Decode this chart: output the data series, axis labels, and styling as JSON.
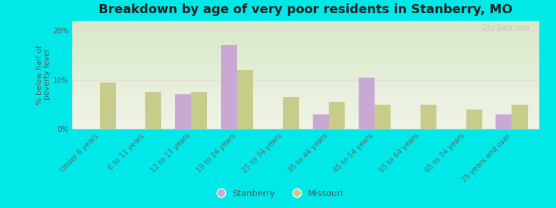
{
  "title": "Breakdown by age of very poor residents in Stanberry, MO",
  "ylabel": "% below half of\npoverty level",
  "categories": [
    "Under 6 years",
    "6 to 11 years",
    "12 to 17 years",
    "18 to 24 years",
    "25 to 34 years",
    "35 to 44 years",
    "45 to 54 years",
    "55 to 64 years",
    "65 to 74 years",
    "75 years and over"
  ],
  "stanberry": [
    0,
    0,
    7.0,
    17.0,
    0,
    3.0,
    10.5,
    0,
    0,
    3.0
  ],
  "missouri": [
    9.5,
    7.5,
    7.5,
    12.0,
    6.5,
    5.5,
    5.0,
    5.0,
    4.0,
    5.0
  ],
  "stanberry_color": "#c9a8d4",
  "missouri_color": "#c8cc8a",
  "background_color": "#00e8e8",
  "ylim": [
    0,
    22
  ],
  "yticks": [
    0,
    10,
    20
  ],
  "ytick_labels": [
    "0%",
    "10%",
    "20%"
  ],
  "bar_width": 0.35,
  "title_fontsize": 13,
  "axis_label_fontsize": 8,
  "tick_label_fontsize": 7.5,
  "legend_fontsize": 9,
  "plot_bg_color_top": "#d8e8c8",
  "plot_bg_color_bottom": "#f0f4e8"
}
